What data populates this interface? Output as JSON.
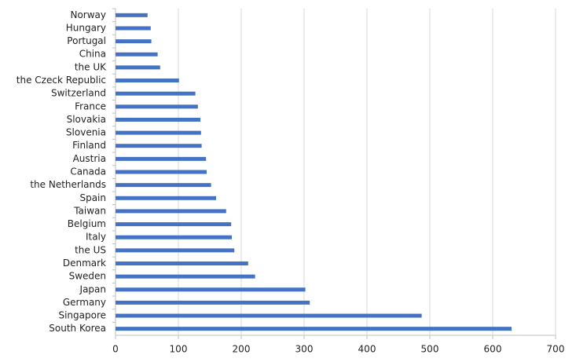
{
  "chart_data": {
    "type": "bar",
    "orientation": "horizontal",
    "categories": [
      "Norway",
      "Hungary",
      "Portugal",
      "China",
      "the UK",
      "the Czeck Republic",
      "Switzerland",
      "France",
      "Slovakia",
      "Slovenia",
      "Finland",
      "Austria",
      "Canada",
      "the Netherlands",
      "Spain",
      "Taiwan",
      "Belgium",
      "Italy",
      "the US",
      "Denmark",
      "Sweden",
      "Japan",
      "Germany",
      "Singapore",
      "South Korea"
    ],
    "values": [
      51,
      56,
      57,
      67,
      71,
      101,
      127,
      131,
      135,
      136,
      137,
      144,
      145,
      152,
      160,
      176,
      184,
      185,
      189,
      211,
      222,
      302,
      309,
      487,
      630
    ],
    "color": "#4472c4",
    "xlim": [
      0,
      700
    ],
    "xticks": [
      0,
      100,
      200,
      300,
      400,
      500,
      600,
      700
    ],
    "grid": true
  }
}
